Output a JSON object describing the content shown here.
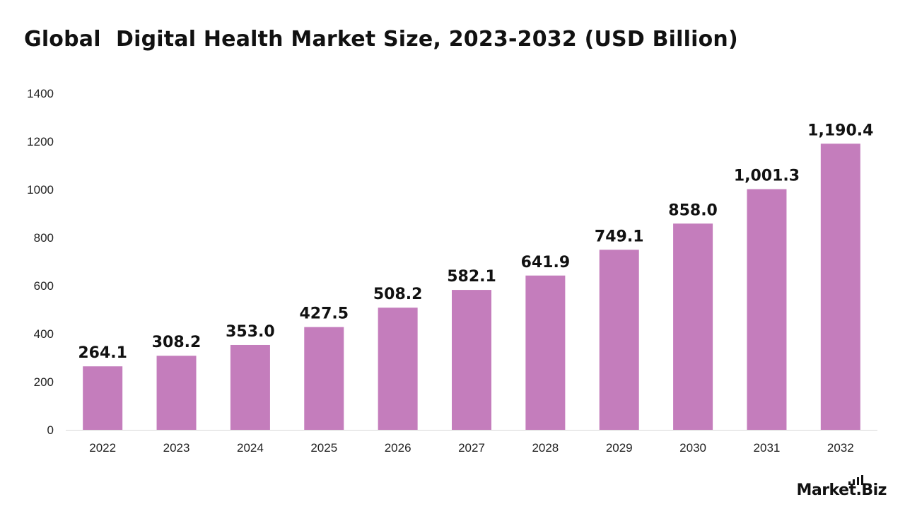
{
  "chart_data": {
    "type": "bar",
    "title": "Global  Digital Health Market Size, 2023-2032 (USD Billion)",
    "categories": [
      "2022",
      "2023",
      "2024",
      "2025",
      "2026",
      "2027",
      "2028",
      "2029",
      "2030",
      "2031",
      "2032"
    ],
    "values": [
      264.1,
      308.2,
      353.0,
      427.5,
      508.2,
      582.1,
      641.9,
      749.1,
      858.0,
      1001.3,
      1190.4
    ],
    "value_labels": [
      "264.1",
      "308.2",
      "353.0",
      "427.5",
      "508.2",
      "582.1",
      "641.9",
      "749.1",
      "858.0",
      "1,001.3",
      "1,190.4"
    ],
    "yticks": [
      "0",
      "200",
      "400",
      "600",
      "800",
      "1000",
      "1200",
      "1400"
    ],
    "ylim": [
      0,
      1400
    ],
    "xlabel": "",
    "ylabel": "",
    "grid": false,
    "bar_color": "#c47dbc",
    "axis_color": "#d9d9d9"
  },
  "brand": {
    "logo_text": "Market.Biz"
  }
}
